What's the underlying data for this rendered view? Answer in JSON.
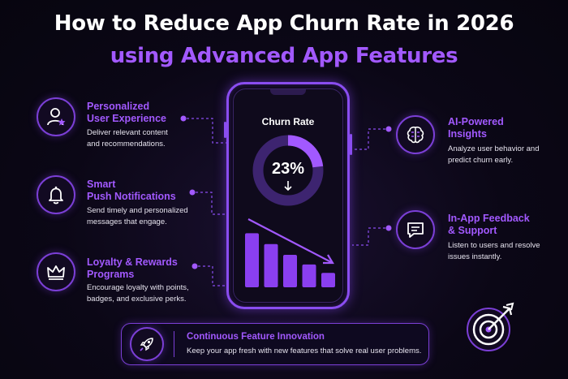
{
  "title": {
    "line1": "How to Reduce App Churn Rate in 2026",
    "line2": "using Advanced App Features"
  },
  "colors": {
    "accent": "#a259ff",
    "accent_dark": "#7b3fd6",
    "background": "#0b0716",
    "text": "#e6e3ee"
  },
  "features": {
    "personalized": {
      "title_line1": "Personalized",
      "title_line2": "User Experience",
      "desc_line1": "Deliver relevant content",
      "desc_line2": "and recommendations.",
      "icon": "user-star-icon"
    },
    "push": {
      "title_line1": "Smart",
      "title_line2": "Push Notifications",
      "desc_line1": "Send timely and personalized",
      "desc_line2": "messages that engage.",
      "icon": "bell-icon"
    },
    "loyalty": {
      "title_line1": "Loyalty & Rewards",
      "title_line2": "Programs",
      "desc_line1": "Encourage loyalty with points,",
      "desc_line2": "badges, and exclusive perks.",
      "icon": "crown-icon"
    },
    "ai": {
      "title_line1": "AI-Powered",
      "title_line2": "Insights",
      "desc_line1": "Analyze user behavior and",
      "desc_line2": "predict churn early.",
      "icon": "brain-icon"
    },
    "feedback": {
      "title_line1": "In-App Feedback",
      "title_line2": "& Support",
      "desc_line1": "Listen to users and resolve",
      "desc_line2": "issues instantly.",
      "icon": "chat-icon"
    }
  },
  "phone": {
    "label": "Churn Rate",
    "percent": "23%",
    "donut_fraction": 0.23,
    "bars": [
      0.9,
      0.72,
      0.54,
      0.38,
      0.24
    ]
  },
  "bottom": {
    "title": "Continuous Feature Innovation",
    "desc": "Keep your app fresh with new features that solve real user problems.",
    "icon": "rocket-icon"
  },
  "decor_icon": "target-arrow-icon"
}
